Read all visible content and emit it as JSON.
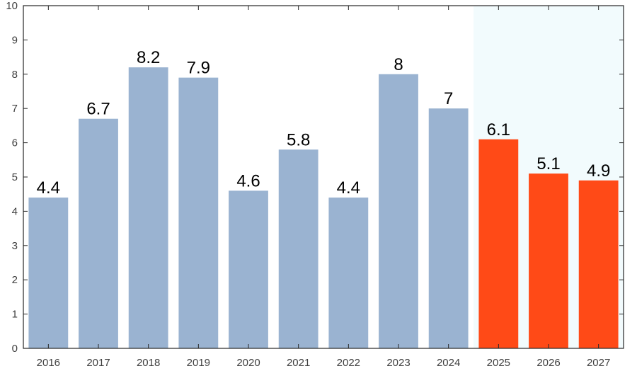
{
  "chart_data": {
    "type": "bar",
    "categories": [
      "2016",
      "2017",
      "2018",
      "2019",
      "2020",
      "2021",
      "2022",
      "2023",
      "2024",
      "2025",
      "2026",
      "2027"
    ],
    "values": [
      4.4,
      6.7,
      8.2,
      7.9,
      4.6,
      5.8,
      4.4,
      8,
      7,
      6.1,
      5.1,
      4.9
    ],
    "value_labels": [
      "4.4",
      "6.7",
      "8.2",
      "7.9",
      "4.6",
      "5.8",
      "4.4",
      "8",
      "7",
      "6.1",
      "5.1",
      "4.9"
    ],
    "forecast_from": "2025",
    "ylim": [
      0,
      10
    ],
    "yticks": [
      "0",
      "1",
      "2",
      "3",
      "4",
      "5",
      "6",
      "7",
      "8",
      "9",
      "10"
    ],
    "colors": {
      "historical": "#9ab3d1",
      "forecast": "#ff4a17",
      "forecast_background": "#f2fbfd",
      "axis": "#262626"
    },
    "grid": false,
    "title": "",
    "xlabel": "",
    "ylabel": ""
  }
}
